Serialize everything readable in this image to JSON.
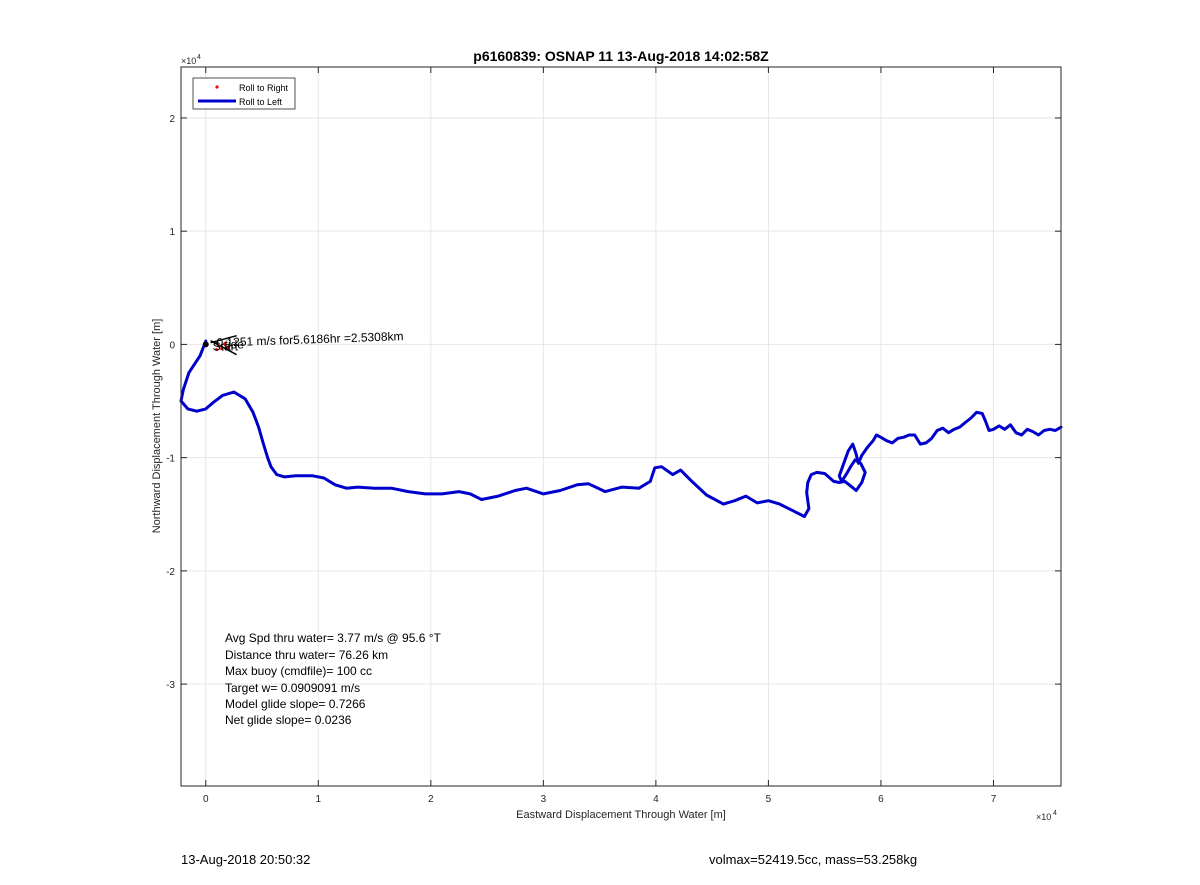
{
  "chart_data": {
    "type": "line",
    "title": "p6160839: OSNAP 11 13-Aug-2018 14:02:58Z",
    "xlabel": "Eastward Displacement Through Water [m]",
    "ylabel": "Northward Displacement Through Water [m]",
    "x_multiplier": "×10^4",
    "y_multiplier": "×10^4",
    "x_exponent_label": "×10",
    "y_exponent_label": "×10",
    "exponent": "4",
    "xlim": [
      -2200,
      76000
    ],
    "ylim": [
      -39000,
      24500
    ],
    "xticks": [
      0,
      10000,
      20000,
      30000,
      40000,
      50000,
      60000,
      70000
    ],
    "xtick_labels": [
      "0",
      "1",
      "2",
      "3",
      "4",
      "5",
      "6",
      "7"
    ],
    "yticks": [
      -30000,
      -20000,
      -10000,
      0,
      10000,
      20000
    ],
    "ytick_labels": [
      "-3",
      "-2",
      "-1",
      "0",
      "1",
      "2"
    ],
    "grid": true,
    "legend": {
      "placement": "top-left",
      "entries": [
        {
          "label": "Roll to Right",
          "color": "#ff0000",
          "marker": "dot"
        },
        {
          "label": "Roll to Left",
          "color": "#0000cc",
          "marker": "line"
        }
      ]
    },
    "series": [
      {
        "name": "Roll to Left",
        "color": "#0000cc",
        "x": [
          0,
          -500,
          -1500,
          -2000,
          -2200,
          -1600,
          -800,
          0,
          700,
          1500,
          2500,
          3500,
          4200,
          4700,
          5100,
          5500,
          5800,
          6300,
          7000,
          8000,
          9500,
          10500,
          11500,
          12500,
          13500,
          15000,
          16500,
          18000,
          19500,
          21000,
          22500,
          23500,
          24500,
          26000,
          27500,
          28500,
          30000,
          31500,
          33000,
          34000,
          35500,
          37000,
          38500,
          39500,
          39900,
          40500,
          41500,
          42200,
          43200,
          44500,
          46000,
          47000,
          48000,
          49000,
          50000,
          51000,
          52000,
          53200,
          53600,
          53400,
          53500,
          53800,
          54300,
          55000,
          55800,
          56300,
          56800,
          57300,
          57800,
          58300,
          58600,
          58200,
          57700,
          57300,
          56900,
          56500,
          56300,
          56700,
          57100,
          57500,
          57800,
          58000,
          58300,
          58800,
          59300,
          59600,
          60000,
          60500,
          61000,
          61500,
          62000,
          62500,
          63000,
          63500,
          64000,
          64500,
          65000,
          65500,
          66000,
          66500,
          67000,
          67500,
          68000,
          68500,
          69000,
          69300,
          69600,
          70000,
          70500,
          71000,
          71500,
          72000,
          72500,
          73000,
          73500,
          74000,
          74500,
          75000,
          75500,
          76000
        ],
        "y": [
          300,
          -1000,
          -2500,
          -4000,
          -5000,
          -5700,
          -5900,
          -5700,
          -5100,
          -4500,
          -4200,
          -4800,
          -6000,
          -7300,
          -8700,
          -10000,
          -10800,
          -11500,
          -11700,
          -11600,
          -11600,
          -11800,
          -12400,
          -12700,
          -12600,
          -12700,
          -12700,
          -13000,
          -13200,
          -13200,
          -13000,
          -13200,
          -13700,
          -13400,
          -12900,
          -12700,
          -13200,
          -12900,
          -12400,
          -12300,
          -13000,
          -12600,
          -12700,
          -12100,
          -10900,
          -10800,
          -11500,
          -11100,
          -12100,
          -13300,
          -14100,
          -13800,
          -13400,
          -14000,
          -13800,
          -14100,
          -14600,
          -15200,
          -14500,
          -13100,
          -12200,
          -11500,
          -11300,
          -11400,
          -12100,
          -12200,
          -12100,
          -12500,
          -12900,
          -12200,
          -11300,
          -10500,
          -10200,
          -10800,
          -11500,
          -12100,
          -11600,
          -10500,
          -9400,
          -8800,
          -9700,
          -10500,
          -9800,
          -9100,
          -8500,
          -8000,
          -8200,
          -8500,
          -8700,
          -8300,
          -8200,
          -8000,
          -8000,
          -8800,
          -8700,
          -8300,
          -7600,
          -7400,
          -7800,
          -7500,
          -7300,
          -6900,
          -6500,
          -6000,
          -6100,
          -6800,
          -7600,
          -7500,
          -7200,
          -7500,
          -7100,
          -7800,
          -8000,
          -7500,
          -7700,
          -8000,
          -7600,
          -7500,
          -7600,
          -7300
        ]
      }
    ],
    "annotations": {
      "current": "0.1251 m/s for5.6186hr =2.5308km",
      "start_label": "Start",
      "drift_label": "tide"
    },
    "stats": [
      "Avg Spd thru water=  3.77 m/s @  95.6 °T",
      "Distance thru water= 76.26 km",
      "Max buoy (cmdfile)= 100 cc",
      "Target w= 0.0909091 m/s",
      "Model glide slope= 0.7266",
      "Net glide slope= 0.0236"
    ]
  },
  "footer": {
    "timestamp": "13-Aug-2018 20:50:32",
    "mass_info": "volmax=52419.5cc, mass=53.258kg"
  },
  "colors": {
    "track": "#0000cc",
    "roll_right": "#ff0000",
    "arrows": "#000000",
    "grid": "#e6e6e6",
    "axis": "#262626"
  }
}
